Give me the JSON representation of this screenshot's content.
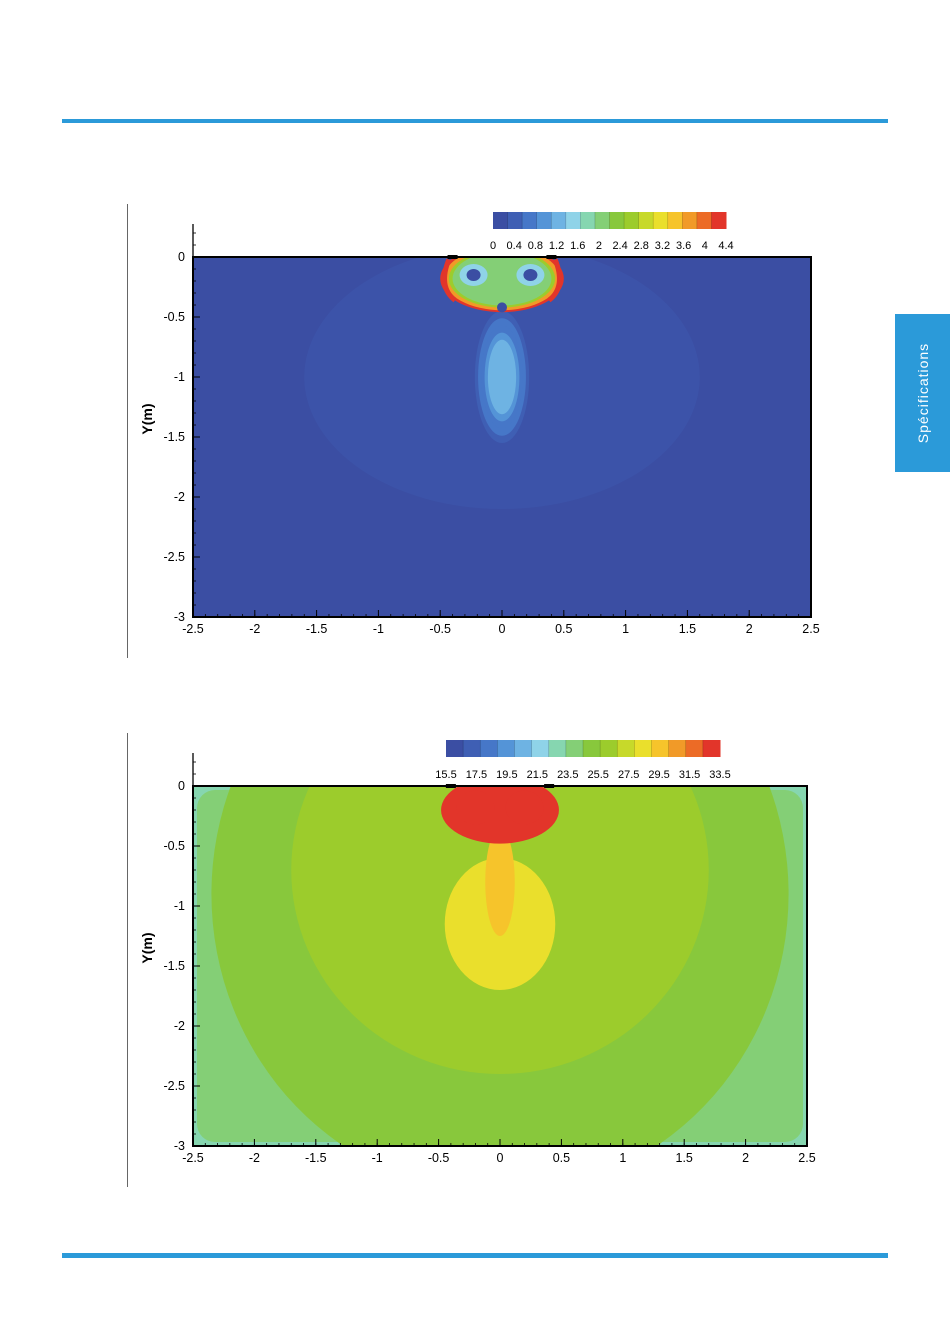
{
  "side_tab": {
    "label": "Spécifications"
  },
  "colors": {
    "accent": "#2b9ad9"
  },
  "chart_data": [
    {
      "type": "heatmap",
      "title": "",
      "xlabel": "",
      "ylabel": "Y(m)",
      "xlim": [
        -2.5,
        2.5
      ],
      "ylim": [
        -3,
        0
      ],
      "x_ticks": [
        "-2.5",
        "-2",
        "-1.5",
        "-1",
        "-0.5",
        "0",
        "0.5",
        "1",
        "1.5",
        "2",
        "2.5"
      ],
      "y_ticks": [
        "0",
        "-0.5",
        "-1",
        "-1.5",
        "-2",
        "-2.5",
        "-3"
      ],
      "colorbar": {
        "min": 0,
        "max": 4.4,
        "labels": [
          "0",
          "0.4",
          "0.8",
          "1.2",
          "1.6",
          "2",
          "2.4",
          "2.8",
          "3.2",
          "3.6",
          "4",
          "4.4"
        ]
      },
      "background_value": 0.2,
      "features": [
        {
          "label": "outlet-core",
          "x": 0,
          "y": -0.25,
          "value": 2.8
        },
        {
          "label": "outlet-edge-left",
          "x": -0.4,
          "y": -0.2,
          "value": 4.4
        },
        {
          "label": "outlet-edge-right",
          "x": 0.4,
          "y": -0.2,
          "value": 4.4
        },
        {
          "label": "jet-plume",
          "x": 0,
          "y": -1.0,
          "value": 1.2
        }
      ]
    },
    {
      "type": "heatmap",
      "title": "",
      "xlabel": "",
      "ylabel": "Y(m)",
      "xlim": [
        -2.5,
        2.5
      ],
      "ylim": [
        -3,
        0
      ],
      "x_ticks": [
        "-2.5",
        "-2",
        "-1.5",
        "-1",
        "-0.5",
        "0",
        "0.5",
        "1",
        "1.5",
        "2",
        "2.5"
      ],
      "y_ticks": [
        "0",
        "-0.5",
        "-1",
        "-1.5",
        "-2",
        "-2.5",
        "-3"
      ],
      "colorbar": {
        "min": 15.5,
        "max": 33.5,
        "labels": [
          "15.5",
          "17.5",
          "19.5",
          "21.5",
          "23.5",
          "25.5",
          "27.5",
          "29.5",
          "31.5",
          "33.5"
        ]
      },
      "background_value": 26,
      "features": [
        {
          "label": "outlet-core",
          "x": 0,
          "y": -0.2,
          "value": 33.5
        },
        {
          "label": "plume",
          "x": 0,
          "y": -1.2,
          "value": 28.5
        },
        {
          "label": "floor-region",
          "x": 0,
          "y": -2.7,
          "value": 24
        }
      ]
    }
  ]
}
